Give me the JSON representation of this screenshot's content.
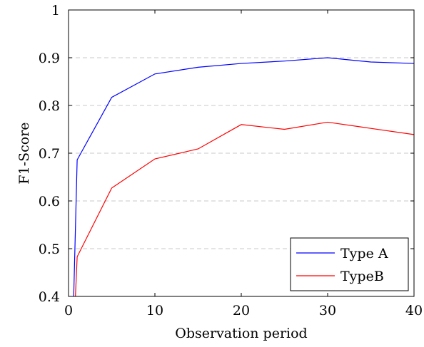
{
  "chart_data": {
    "type": "line",
    "xlabel": "Observation period",
    "ylabel": "F1-Score",
    "xlim": [
      0,
      40
    ],
    "ylim": [
      0.4,
      1.0
    ],
    "xticks": [
      0,
      10,
      20,
      30,
      40
    ],
    "yticks": [
      0.4,
      0.5,
      0.6,
      0.7,
      0.8,
      0.9,
      1.0
    ],
    "ytick_labels": [
      "0.4",
      "0.5",
      "0.6",
      "0.7",
      "0.8",
      "0.9",
      "1"
    ],
    "grid": "horizontal-dashed",
    "legend_position": "bottom-right",
    "series": [
      {
        "name": "Type A",
        "color": "#0000ff",
        "x": [
          0.6,
          1,
          5,
          10,
          15,
          20,
          25,
          30,
          35,
          40
        ],
        "y": [
          0.4,
          0.686,
          0.817,
          0.866,
          0.88,
          0.888,
          0.893,
          0.9,
          0.891,
          0.888
        ]
      },
      {
        "name": "TypeB",
        "color": "#ff0000",
        "x": [
          0.8,
          1,
          5,
          10,
          15,
          20,
          25,
          30,
          35,
          40
        ],
        "y": [
          0.4,
          0.483,
          0.627,
          0.688,
          0.709,
          0.76,
          0.75,
          0.765,
          0.752,
          0.739
        ]
      }
    ]
  }
}
